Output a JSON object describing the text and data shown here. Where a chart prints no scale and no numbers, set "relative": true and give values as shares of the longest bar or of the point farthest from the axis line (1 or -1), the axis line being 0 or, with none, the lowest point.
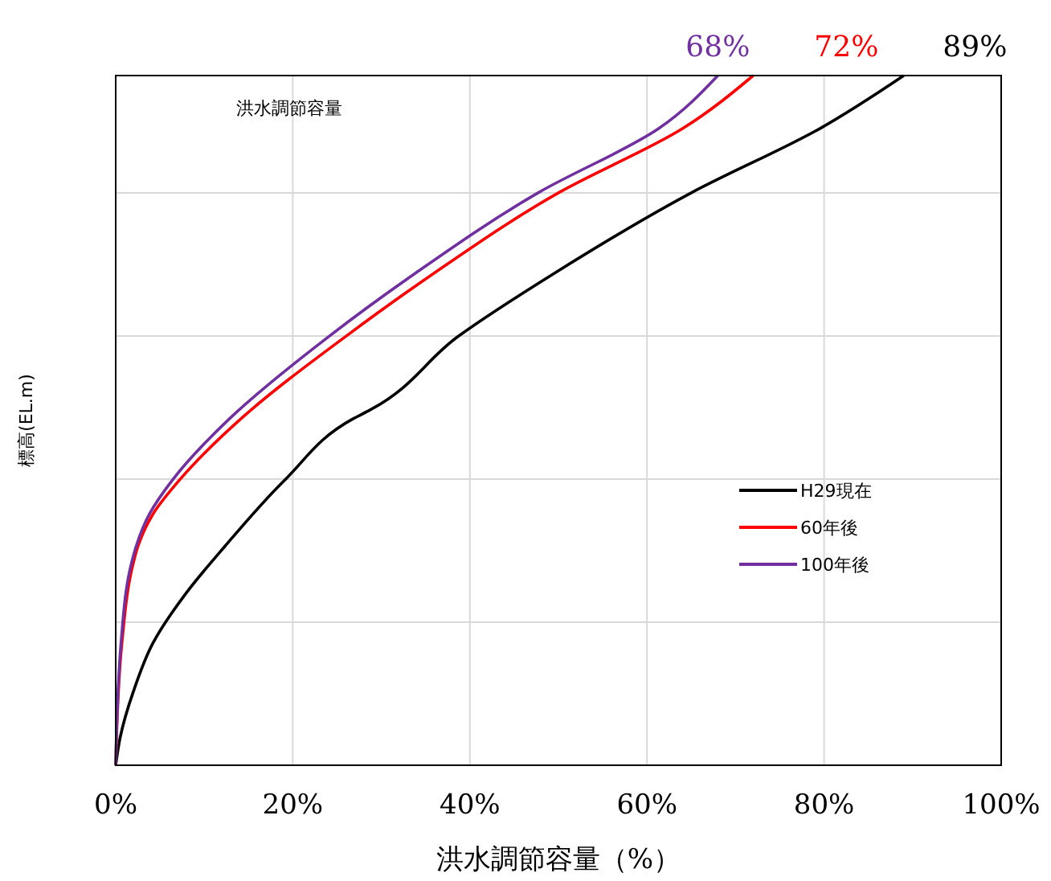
{
  "chart_data": {
    "type": "line",
    "relative": true,
    "xlabel": "洪水調節容量（%）",
    "ylabel": "標高(EL.m)",
    "xlim": [
      0,
      100
    ],
    "xticks": [
      {
        "value": 0,
        "label": "0%"
      },
      {
        "value": 20,
        "label": "20%"
      },
      {
        "value": 40,
        "label": "40%"
      },
      {
        "value": 60,
        "label": "60%"
      },
      {
        "value": 80,
        "label": "80%"
      },
      {
        "value": 100,
        "label": "100%"
      }
    ],
    "tick_labels": "x",
    "grid": true,
    "legend": "right",
    "marker": "none",
    "line_style": "solid",
    "series": [
      {
        "name": "H29現在",
        "color": "#000000",
        "x": [
          0,
          0.5,
          2,
          4.2,
          7.8,
          12.3,
          19.2,
          26.9,
          28.7,
          38.7,
          49.5,
          65,
          79.5,
          89
        ],
        "values": [
          0,
          0.04,
          0.107,
          0.177,
          0.247,
          0.317,
          0.415,
          0.503,
          0.515,
          0.622,
          0.713,
          0.83,
          0.923,
          1
        ]
      },
      {
        "name": "60年後",
        "color": "#ff0000",
        "x": [
          0,
          0.7,
          2,
          2.5,
          4.2,
          7.3,
          14.2,
          26,
          35.9,
          50,
          64,
          72
        ],
        "values": [
          0,
          0.177,
          0.294,
          0.317,
          0.364,
          0.415,
          0.503,
          0.622,
          0.713,
          0.83,
          0.923,
          1
        ]
      },
      {
        "name": "100年後",
        "color": "#7030a0",
        "x": [
          0,
          0.6,
          1.8,
          2.3,
          3.8,
          6.5,
          12.9,
          24.1,
          33.8,
          47.7,
          61.3,
          68
        ],
        "values": [
          0,
          0.177,
          0.294,
          0.317,
          0.364,
          0.415,
          0.503,
          0.622,
          0.713,
          0.83,
          0.923,
          1
        ]
      }
    ],
    "annotations": [
      "洪水調節容量",
      {
        "text": "68%",
        "x": 68,
        "y": 1
      },
      {
        "text": "72%",
        "x": 72,
        "y": 1
      },
      {
        "text": "89%",
        "x": 89,
        "y": 1
      }
    ]
  }
}
